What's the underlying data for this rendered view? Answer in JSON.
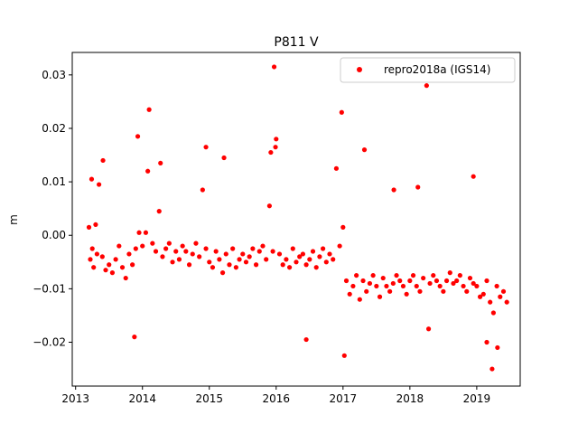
{
  "chart_data": {
    "type": "scatter",
    "title": "P811 V",
    "xlabel": "",
    "ylabel": "m",
    "xlim": [
      2012.95,
      2019.65
    ],
    "ylim": [
      -0.0282,
      0.0342
    ],
    "xticks": [
      2013,
      2014,
      2015,
      2016,
      2017,
      2018,
      2019
    ],
    "xtick_labels": [
      "2013",
      "2014",
      "2015",
      "2016",
      "2017",
      "2018",
      "2019"
    ],
    "yticks": [
      -0.02,
      -0.01,
      0.0,
      0.01,
      0.02,
      0.03
    ],
    "ytick_labels": [
      "−0.02",
      "−0.01",
      "0.00",
      "0.01",
      "0.02",
      "0.03"
    ],
    "grid": false,
    "legend_position": "top-right",
    "series": [
      {
        "name": "repro2018a (IGS14)",
        "color": "#ff0000",
        "marker": "circle",
        "x": [
          2013.2,
          2013.22,
          2013.25,
          2013.27,
          2013.3,
          2013.32,
          2013.35,
          2013.4,
          2013.45,
          2013.5,
          2013.55,
          2013.6,
          2013.65,
          2013.7,
          2013.75,
          2013.8,
          2013.85,
          2013.9,
          2013.95,
          2013.93,
          2014.0,
          2014.05,
          2014.1,
          2014.15,
          2014.2,
          2014.25,
          2014.3,
          2014.35,
          2014.4,
          2014.45,
          2014.5,
          2014.55,
          2014.6,
          2014.65,
          2014.7,
          2014.75,
          2014.8,
          2014.85,
          2014.9,
          2014.95,
          2015.0,
          2015.05,
          2015.1,
          2015.15,
          2015.2,
          2015.25,
          2015.3,
          2015.35,
          2015.4,
          2015.45,
          2015.5,
          2015.55,
          2015.6,
          2015.65,
          2015.7,
          2015.75,
          2015.8,
          2015.85,
          2015.9,
          2015.95,
          2015.97,
          2016.0,
          2016.05,
          2016.1,
          2016.15,
          2016.2,
          2016.25,
          2016.3,
          2016.35,
          2016.4,
          2016.45,
          2016.5,
          2016.55,
          2016.6,
          2016.65,
          2016.7,
          2016.75,
          2016.8,
          2016.85,
          2016.9,
          2016.95,
          2017.0,
          2017.05,
          2017.1,
          2017.15,
          2017.2,
          2017.25,
          2017.3,
          2017.35,
          2017.4,
          2017.45,
          2017.5,
          2017.55,
          2017.6,
          2017.65,
          2017.7,
          2017.75,
          2017.8,
          2017.85,
          2017.9,
          2017.95,
          2018.0,
          2018.05,
          2018.1,
          2018.15,
          2018.2,
          2018.25,
          2018.3,
          2018.35,
          2018.4,
          2018.45,
          2018.5,
          2018.55,
          2018.6,
          2018.65,
          2018.7,
          2018.75,
          2018.8,
          2018.85,
          2018.9,
          2018.95,
          2019.0,
          2019.05,
          2019.1,
          2019.15,
          2019.2,
          2019.25,
          2019.3,
          2019.35,
          2019.4,
          2019.45,
          2013.24,
          2013.41,
          2013.88,
          2014.08,
          2014.27,
          2014.95,
          2015.22,
          2015.92,
          2015.99,
          2016.45,
          2016.98,
          2017.02,
          2017.32,
          2017.76,
          2018.12,
          2018.28,
          2018.95,
          2019.15,
          2019.23,
          2019.31
        ],
        "y": [
          0.0015,
          -0.0045,
          -0.0025,
          -0.006,
          0.002,
          -0.0035,
          0.0095,
          -0.004,
          -0.0065,
          -0.0055,
          -0.007,
          -0.0045,
          -0.002,
          -0.006,
          -0.008,
          -0.0035,
          -0.0055,
          -0.0025,
          0.0005,
          0.0185,
          -0.002,
          0.0005,
          0.0235,
          -0.0015,
          -0.003,
          0.0045,
          -0.004,
          -0.0025,
          -0.0015,
          -0.005,
          -0.003,
          -0.0045,
          -0.002,
          -0.003,
          -0.0055,
          -0.0035,
          -0.0015,
          -0.004,
          0.0085,
          -0.0025,
          -0.005,
          -0.006,
          -0.003,
          -0.0045,
          -0.007,
          -0.0035,
          -0.0055,
          -0.0025,
          -0.006,
          -0.0045,
          -0.0035,
          -0.005,
          -0.004,
          -0.0025,
          -0.0055,
          -0.003,
          -0.002,
          -0.0045,
          0.0055,
          -0.003,
          0.0315,
          0.018,
          -0.0035,
          -0.0055,
          -0.0045,
          -0.006,
          -0.0025,
          -0.005,
          -0.004,
          -0.0035,
          -0.0055,
          -0.0045,
          -0.003,
          -0.006,
          -0.004,
          -0.0025,
          -0.005,
          -0.0035,
          -0.0045,
          0.0125,
          -0.002,
          0.0015,
          -0.0085,
          -0.011,
          -0.0095,
          -0.0075,
          -0.012,
          -0.0085,
          -0.0105,
          -0.009,
          -0.0075,
          -0.0095,
          -0.0115,
          -0.008,
          -0.0095,
          -0.0105,
          -0.009,
          -0.0075,
          -0.0085,
          -0.0095,
          -0.011,
          -0.0085,
          -0.0075,
          -0.0095,
          -0.0105,
          -0.008,
          0.028,
          -0.009,
          -0.0075,
          -0.0085,
          -0.0095,
          -0.0105,
          -0.0085,
          -0.007,
          -0.009,
          -0.0085,
          -0.0075,
          -0.0095,
          -0.0105,
          -0.008,
          -0.009,
          -0.0095,
          -0.0115,
          -0.011,
          -0.0085,
          -0.0125,
          -0.0145,
          -0.0095,
          -0.0115,
          -0.0105,
          -0.0125,
          0.0105,
          0.014,
          -0.019,
          0.012,
          0.0135,
          0.0165,
          0.0145,
          0.0155,
          0.0165,
          -0.0195,
          0.023,
          -0.0225,
          0.016,
          0.0085,
          0.009,
          -0.0175,
          0.011,
          -0.02,
          -0.025,
          -0.021
        ]
      }
    ]
  }
}
